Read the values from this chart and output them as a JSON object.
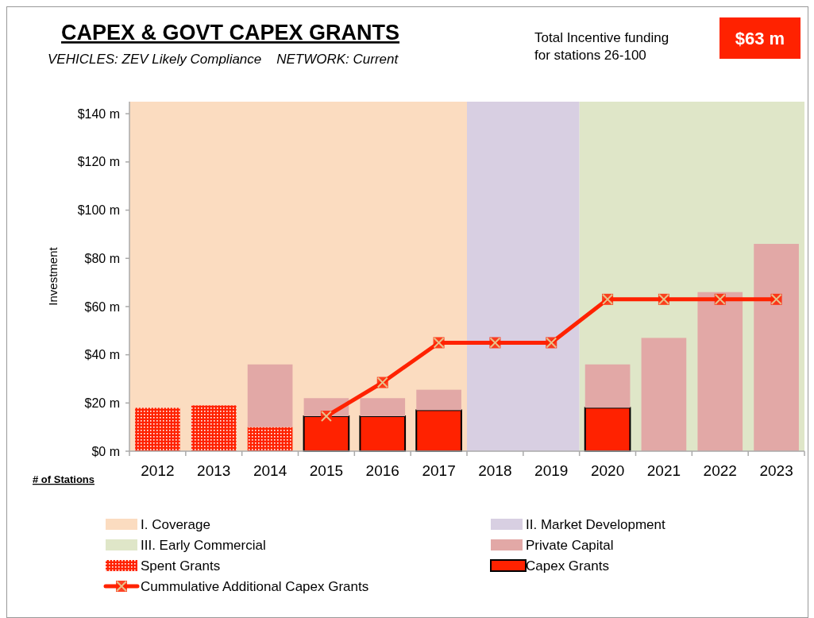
{
  "chart_data": {
    "type": "bar",
    "stacked": true,
    "title": "CAPEX & GOVT CAPEX GRANTS",
    "subtitle": "VEHICLES: ZEV Likely Compliance    NETWORK: Current",
    "ylabel": "Investment",
    "xlabel": "# of Stations",
    "categories": [
      "2012",
      "2013",
      "2014",
      "2015",
      "2016",
      "2017",
      "2018",
      "2019",
      "2020",
      "2021",
      "2022",
      "2023"
    ],
    "series": [
      {
        "name": "Spent Grants",
        "color": "#ff2200",
        "values": [
          18,
          19,
          10,
          null,
          null,
          null,
          null,
          null,
          null,
          null,
          null,
          null
        ]
      },
      {
        "name": "Capex Grants",
        "color": "#ff2200",
        "values": [
          null,
          null,
          null,
          14.5,
          14.5,
          17,
          null,
          null,
          18,
          null,
          null,
          null
        ]
      },
      {
        "name": "Private Capital",
        "color": "#e2a8a6",
        "values": [
          null,
          null,
          26,
          7.5,
          7.5,
          8.5,
          null,
          null,
          18,
          47,
          66,
          86
        ]
      },
      {
        "name": "Cummulative Additional Capex Grants",
        "type": "line",
        "color": "#ff2200",
        "marker": "square",
        "values": [
          null,
          null,
          null,
          14.5,
          28.5,
          45,
          45,
          45,
          63,
          63,
          63,
          63
        ]
      }
    ],
    "ylim": [
      0,
      145
    ],
    "yticks": [
      {
        "value": 0,
        "label": "$0 m"
      },
      {
        "value": 20,
        "label": "$20 m"
      },
      {
        "value": 40,
        "label": "$40 m"
      },
      {
        "value": 60,
        "label": "$60 m"
      },
      {
        "value": 80,
        "label": "$80 m"
      },
      {
        "value": 100,
        "label": "$100 m"
      },
      {
        "value": 120,
        "label": "$120 m"
      },
      {
        "value": 140,
        "label": "$140 m"
      }
    ],
    "bands": [
      {
        "axis": "x",
        "from": "2012",
        "to": "2017",
        "label": "I. Coverage",
        "color": "#fbdcc0"
      },
      {
        "axis": "x",
        "from": "2018",
        "to": "2019",
        "label": "II. Market Development",
        "color": "#d8cfe2"
      },
      {
        "axis": "x",
        "from": "2020",
        "to": "2023",
        "label": "III. Early Commercial",
        "color": "#dfe6c8"
      }
    ],
    "annotations": [
      "Total Incentive funding for stations 26-100",
      "$63 m"
    ],
    "legend": "bottom",
    "grid": false
  }
}
